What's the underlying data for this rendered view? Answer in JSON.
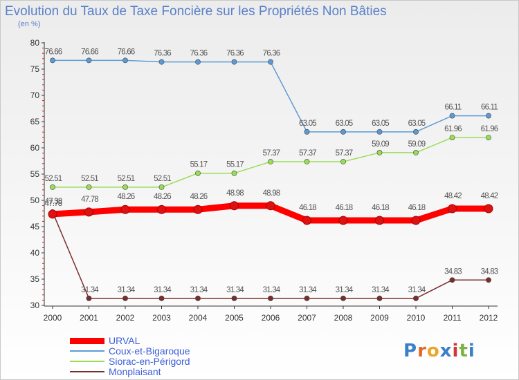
{
  "title": "Evolution du Taux de Taxe Foncière sur les Propriétés Non Bâties",
  "subtitle": "(en %)",
  "logo": {
    "letters": [
      "P",
      "r",
      "o",
      "x",
      "i",
      "t",
      "i"
    ],
    "colors": [
      "#3a7fc9",
      "#e0692a",
      "#e8a72b",
      "#3a7fc9",
      "#d2353b",
      "#7cb342",
      "#3a7fc9"
    ]
  },
  "chart_data": {
    "type": "line",
    "title": "Evolution du Taux de Taxe Foncière sur les Propriétés Non Bâties",
    "xlabel": "",
    "ylabel": "(en %)",
    "x": [
      "2000",
      "2001",
      "2002",
      "2003",
      "2004",
      "2005",
      "2006",
      "2007",
      "2008",
      "2009",
      "2010",
      "2011",
      "2012"
    ],
    "ylim": [
      30,
      80
    ],
    "yticks": [
      "30",
      "35",
      "40",
      "45",
      "50",
      "55",
      "60",
      "65",
      "70",
      "75",
      "80"
    ],
    "grid": false,
    "legend_position": "bottom-left",
    "series": [
      {
        "name": "URVAL",
        "color": "#ff0000",
        "values": [
          47.38,
          47.78,
          48.26,
          48.26,
          48.26,
          48.98,
          48.98,
          46.18,
          46.18,
          46.18,
          46.18,
          48.42,
          48.42
        ],
        "labels": [
          "47.38",
          "47.78",
          "48.26",
          "48.26",
          "48.26",
          "48.98",
          "48.98",
          "46.18",
          "46.18",
          "46.18",
          "46.18",
          "48.42",
          "48.42"
        ]
      },
      {
        "name": "Coux-et-Bigaroque",
        "color": "#5b9bd5",
        "values": [
          76.66,
          76.66,
          76.66,
          76.36,
          76.36,
          76.36,
          76.36,
          63.05,
          63.05,
          63.05,
          63.05,
          66.11,
          66.11
        ],
        "labels": [
          "76.66",
          "76.66",
          "76.66",
          "76.36",
          "76.36",
          "76.36",
          "76.36",
          "63.05",
          "63.05",
          "63.05",
          "63.05",
          "66.11",
          "66.11"
        ]
      },
      {
        "name": "Siorac-en-Périgord",
        "color": "#99dd55",
        "values": [
          52.51,
          52.51,
          52.51,
          52.51,
          55.17,
          55.17,
          57.37,
          57.37,
          57.37,
          59.09,
          59.09,
          61.96,
          61.96
        ],
        "labels": [
          "52.51",
          "52.51",
          "52.51",
          "52.51",
          "55.17",
          "55.17",
          "57.37",
          "57.37",
          "57.37",
          "59.09",
          "59.09",
          "61.96",
          "61.96"
        ]
      },
      {
        "name": "Monplaisant",
        "color": "#7b2d2d",
        "values": [
          47.78,
          31.34,
          31.34,
          31.34,
          31.34,
          31.34,
          31.34,
          31.34,
          31.34,
          31.34,
          31.34,
          34.83,
          34.83
        ],
        "labels": [
          "47.78",
          "31.34",
          "31.34",
          "31.34",
          "31.34",
          "31.34",
          "31.34",
          "31.34",
          "31.34",
          "31.34",
          "31.34",
          "34.83",
          "34.83"
        ]
      }
    ]
  }
}
